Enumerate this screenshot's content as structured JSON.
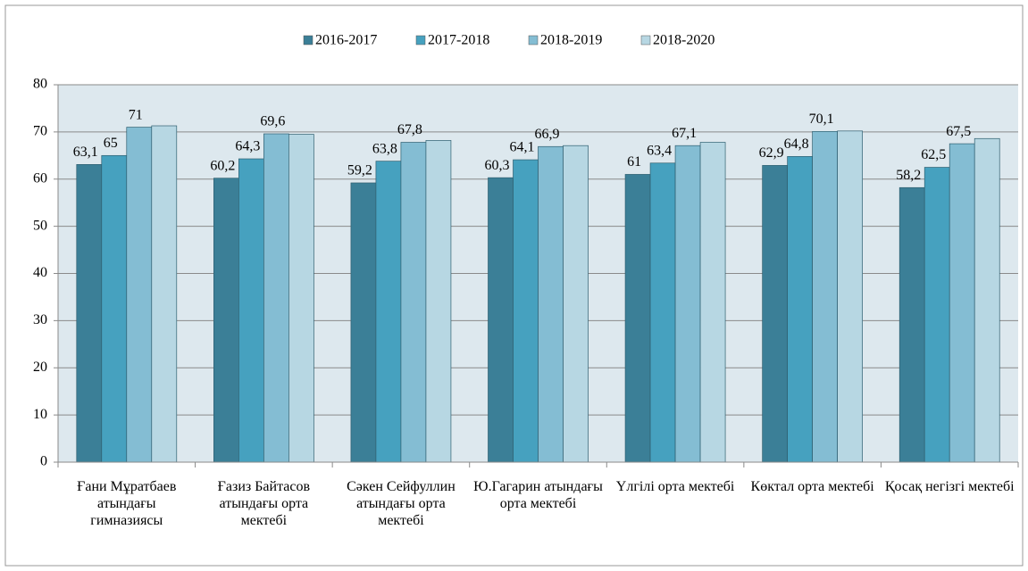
{
  "chart_data": {
    "type": "bar",
    "categories": [
      "Ғани Мұратбаев атындағы гимназиясы",
      "Ғазиз Байтасов атындағы орта мектебі",
      "Сәкен Сейфуллин атындағы орта мектебі",
      "Ю.Гагарин атындағы орта мектебі",
      "Үлгілі орта мектебі",
      "Көктал орта мектебі",
      "Қосақ негізгі мектебі"
    ],
    "series": [
      {
        "name": "2016-2017",
        "color": "#3b7f97",
        "values": [
          63.1,
          60.2,
          59.2,
          60.3,
          61,
          62.9,
          58.2
        ],
        "value_labels": [
          "63,1",
          "60,2",
          "59,2",
          "60,3",
          "61",
          "62,9",
          "58,2"
        ]
      },
      {
        "name": "2017-2018",
        "color": "#46a1bf",
        "values": [
          65,
          64.3,
          63.8,
          64.1,
          63.4,
          64.8,
          62.5
        ],
        "value_labels": [
          "65",
          "64,3",
          "63,8",
          "64,1",
          "63,4",
          "64,8",
          "62,5"
        ]
      },
      {
        "name": "2018-2019",
        "color": "#84bdd3",
        "values": [
          71,
          69.6,
          67.8,
          66.9,
          67.1,
          70.1,
          67.5
        ],
        "value_labels": [
          "71",
          "69,6",
          "67,8",
          "66,9",
          "67,1",
          "70,1",
          "67,5"
        ]
      },
      {
        "name": "2018-2020",
        "color": "#b7d7e3",
        "values": [
          71.3,
          69.5,
          68.2,
          67.1,
          67.8,
          70.2,
          68.6
        ]
      }
    ],
    "ylim": [
      0,
      80
    ],
    "yticks": [
      0,
      10,
      20,
      30,
      40,
      50,
      60,
      70,
      80
    ],
    "grid": true,
    "legend": "top"
  }
}
